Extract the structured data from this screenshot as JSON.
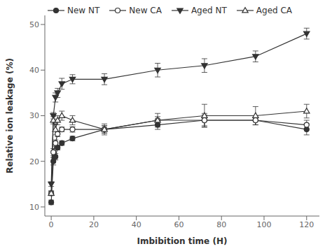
{
  "chart_data": {
    "type": "line",
    "xlabel": "Imbibition time (H)",
    "ylabel": "Relative ion leakage (%)",
    "x": [
      0,
      1,
      2,
      3,
      5,
      10,
      25,
      50,
      72,
      96,
      120
    ],
    "series": [
      {
        "name": "New NT",
        "color": "#333333",
        "marker": "filled_circle",
        "line_style": "solid",
        "values": [
          11,
          20,
          21,
          23,
          24,
          25,
          27,
          28,
          29,
          29,
          27
        ],
        "error": [
          0.5,
          0.8,
          0.7,
          0.5,
          0.5,
          0.5,
          0.8,
          1.0,
          1.5,
          1.0,
          1.2
        ]
      },
      {
        "name": "New CA",
        "color": "#333333",
        "marker": "open_circle",
        "line_style": "solid",
        "values": [
          13,
          22,
          24,
          26,
          27,
          27,
          27,
          29,
          29,
          29,
          28
        ],
        "error": [
          0.5,
          0.8,
          0.7,
          0.6,
          0.5,
          0.6,
          0.8,
          0.8,
          1.2,
          1.0,
          1.0
        ]
      },
      {
        "name": "Aged NT",
        "color": "#333333",
        "marker": "filled_triangle_down",
        "line_style": "solid",
        "values": [
          15,
          30,
          34,
          35,
          37,
          38,
          38,
          40,
          41,
          43,
          48
        ],
        "error": [
          0.5,
          0.7,
          1.0,
          1.0,
          1.2,
          1.0,
          1.2,
          1.5,
          1.5,
          1.2,
          1.2
        ]
      },
      {
        "name": "Aged CA",
        "color": "#333333",
        "marker": "open_triangle_up",
        "line_style": "solid",
        "values": [
          13,
          29,
          27,
          29,
          30,
          29,
          27,
          29,
          30,
          30,
          31
        ],
        "error": [
          0.5,
          0.8,
          1.2,
          1.0,
          1.0,
          1.0,
          1.2,
          1.5,
          2.5,
          2.0,
          1.5
        ]
      }
    ],
    "xlim": [
      -3,
      126
    ],
    "xticks": [
      0,
      20,
      40,
      60,
      80,
      100,
      120
    ],
    "ylim": [
      8,
      52
    ],
    "yticks": [
      10,
      20,
      30,
      40,
      50
    ],
    "grid": false,
    "legend": "upper left"
  }
}
